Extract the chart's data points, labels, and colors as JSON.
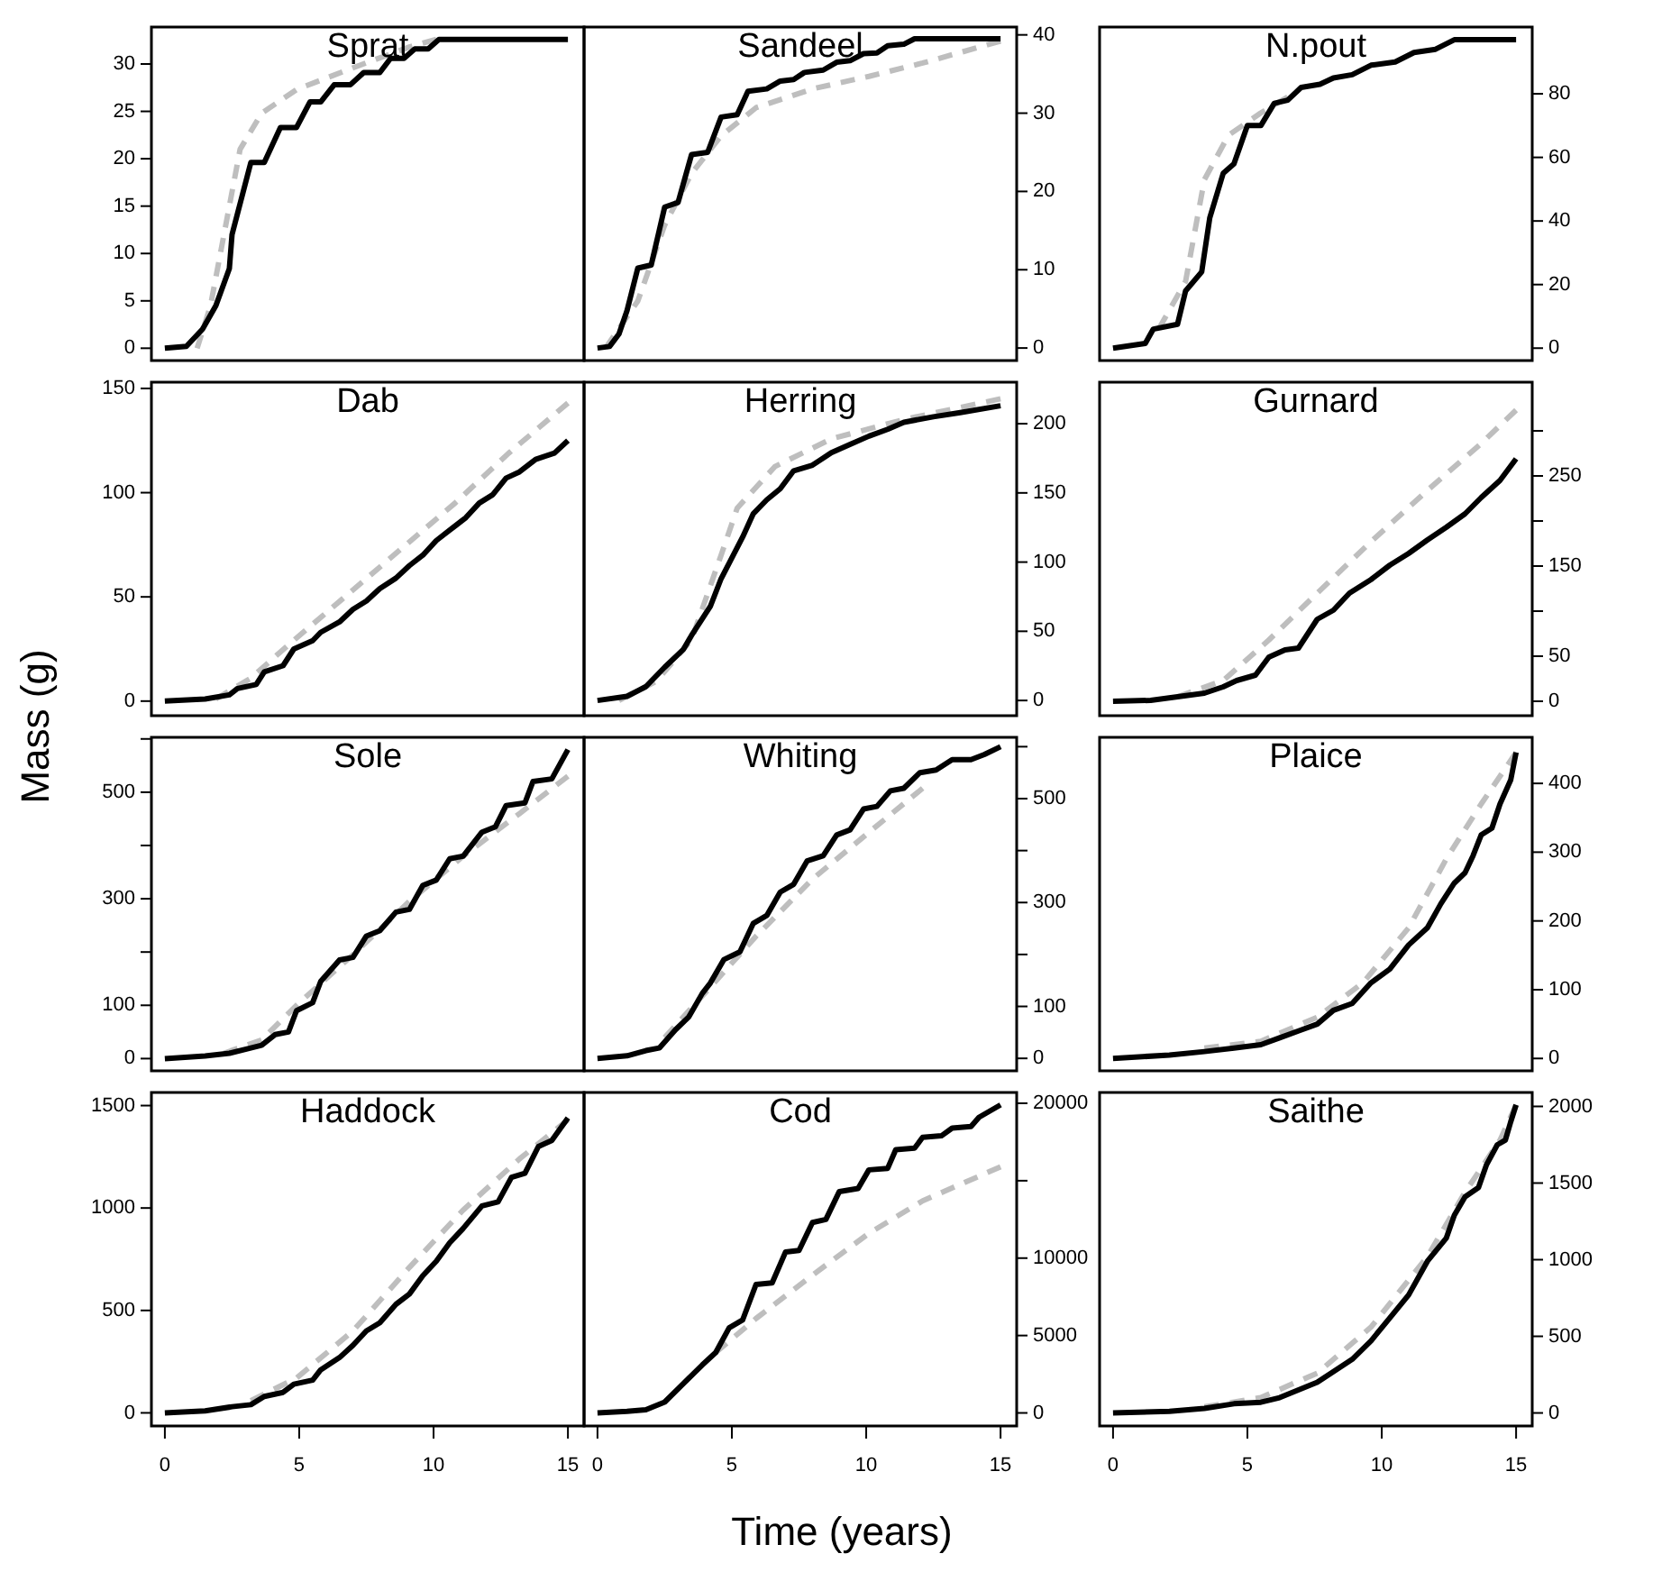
{
  "chart_data": [
    {
      "type": "line",
      "title": "Sprat",
      "xlim": [
        -0.5,
        15.6
      ],
      "xticks": [
        0,
        5,
        10,
        15
      ],
      "ylim": [
        -1.3,
        33.9
      ],
      "yticks": [
        0,
        5,
        10,
        15,
        20,
        25,
        30
      ],
      "tick_labels": "y",
      "series": [
        {
          "color": "#000000",
          "line_style": "solid",
          "x": [
            0,
            0.8,
            1.4,
            1.9,
            2.4,
            2.5,
            3.2,
            3.7,
            4.3,
            4.9,
            5.4,
            5.8,
            6.3,
            6.9,
            7.4,
            8.0,
            8.4,
            8.9,
            9.3,
            9.8,
            10.2,
            15
          ],
          "values": [
            0,
            0.2,
            2,
            4.5,
            8.4,
            12,
            19.6,
            19.6,
            23.3,
            23.3,
            26,
            26,
            27.8,
            27.8,
            29.1,
            29.1,
            30.6,
            30.6,
            31.6,
            31.6,
            32.6,
            32.6
          ]
        },
        {
          "color": "#bebebe",
          "line_style": "dashed",
          "x": [
            1.2,
            1.7,
            2.2,
            2.8,
            3.6,
            4.9,
            7.0,
            9.1,
            10.1
          ],
          "values": [
            0,
            4.5,
            12,
            21,
            24.8,
            27.3,
            29.6,
            31.8,
            32.6
          ]
        }
      ]
    },
    {
      "type": "line",
      "title": "Sandeel",
      "xlim": [
        -0.5,
        15.6
      ],
      "xticks": [
        0,
        5,
        10,
        15
      ],
      "ylim": [
        -1.6,
        41.0
      ],
      "yticks": [
        0,
        10,
        20,
        30,
        40
      ],
      "tick_labels": "y",
      "series": [
        {
          "color": "#000000",
          "line_style": "solid",
          "x": [
            0,
            0.45,
            0.8,
            1.1,
            1.5,
            2.0,
            2.5,
            3.0,
            3.5,
            4.1,
            4.6,
            5.2,
            5.6,
            6.3,
            6.8,
            7.3,
            7.7,
            8.4,
            8.9,
            9.4,
            9.9,
            10.4,
            10.8,
            11.4,
            11.8,
            15
          ],
          "values": [
            0,
            0.2,
            1.8,
            4.8,
            10.2,
            10.6,
            18,
            18.6,
            24.7,
            25,
            29.5,
            29.8,
            32.8,
            33.1,
            34.1,
            34.3,
            35.2,
            35.5,
            36.5,
            36.7,
            37.6,
            37.7,
            38.6,
            38.8,
            39.5,
            39.5
          ]
        },
        {
          "color": "#bebebe",
          "line_style": "dashed",
          "x": [
            0.3,
            1.5,
            2.5,
            3.5,
            4.6,
            5.9,
            8.0,
            10.1,
            12.1,
            15
          ],
          "values": [
            0,
            6,
            15.7,
            22.3,
            27.1,
            30.7,
            33.1,
            34.7,
            36.4,
            39.2
          ]
        }
      ]
    },
    {
      "type": "line",
      "title": "N.pout",
      "xlim": [
        -0.5,
        15.6
      ],
      "xticks": [
        0,
        5,
        10,
        15
      ],
      "ylim": [
        -3.9,
        101
      ],
      "yticks": [
        0,
        20,
        40,
        60,
        80
      ],
      "tick_labels": "y",
      "series": [
        {
          "color": "#000000",
          "line_style": "solid",
          "x": [
            0,
            1.2,
            1.5,
            2.4,
            2.7,
            3.3,
            3.6,
            4.1,
            4.5,
            5.0,
            5.5,
            6.0,
            6.5,
            7.0,
            7.7,
            8.2,
            8.9,
            9.6,
            10.5,
            11.2,
            12.0,
            12.7,
            15
          ],
          "values": [
            0,
            1.5,
            6,
            7.5,
            18,
            24,
            41,
            55,
            58,
            70,
            70,
            77,
            78,
            82,
            83,
            85,
            86,
            89,
            90,
            93,
            94,
            97,
            97
          ]
        },
        {
          "color": "#bebebe",
          "line_style": "dashed",
          "x": [
            1.7,
            2.7,
            3.4,
            4.3,
            5.5,
            6.5
          ],
          "values": [
            6,
            21,
            53,
            67,
            74,
            79
          ]
        }
      ]
    },
    {
      "type": "line",
      "title": "Dab",
      "ylabel": "Mass (g)",
      "xlim": [
        -0.5,
        15.6
      ],
      "xticks": [
        0,
        5,
        10,
        15
      ],
      "ylim": [
        -7,
        153
      ],
      "yticks": [
        0,
        50,
        100,
        150
      ],
      "tick_labels": "y",
      "series": [
        {
          "color": "#000000",
          "line_style": "solid",
          "x": [
            0,
            1.5,
            2.4,
            2.7,
            3.4,
            3.7,
            4.4,
            4.8,
            5.5,
            5.8,
            6.5,
            7.0,
            7.5,
            8.0,
            8.6,
            9.1,
            9.6,
            10.1,
            10.6,
            11.2,
            11.7,
            12.2,
            12.7,
            13.2,
            13.8,
            14.5,
            15
          ],
          "values": [
            0,
            1,
            3,
            6,
            8,
            14,
            17,
            25,
            29,
            33,
            38,
            44,
            48,
            54,
            59,
            65,
            70,
            77,
            82,
            88,
            95,
            99,
            107,
            110,
            116,
            119,
            125
          ]
        },
        {
          "color": "#bebebe",
          "line_style": "dashed",
          "x": [
            1.9,
            3.2,
            4.6,
            6.7,
            8.7,
            10.8,
            12.8,
            15
          ],
          "values": [
            1,
            11,
            27,
            50,
            72,
            95,
            119,
            143
          ]
        }
      ]
    },
    {
      "type": "line",
      "title": "Herring",
      "xlim": [
        -0.5,
        15.6
      ],
      "xticks": [
        0,
        5,
        10,
        15
      ],
      "ylim": [
        -11,
        230
      ],
      "yticks": [
        0,
        50,
        100,
        150,
        200
      ],
      "tick_labels": "y",
      "series": [
        {
          "color": "#000000",
          "line_style": "solid",
          "x": [
            0,
            1.1,
            1.8,
            2.5,
            3.2,
            3.5,
            4.2,
            4.6,
            5.4,
            5.8,
            6.3,
            6.8,
            7.3,
            8.0,
            8.7,
            9.4,
            10.1,
            10.8,
            11.4,
            12.5,
            13.5,
            15
          ],
          "values": [
            0,
            3,
            10,
            24,
            37,
            47,
            68,
            88,
            118,
            135,
            145,
            153,
            166,
            170,
            179,
            185,
            191,
            196,
            201,
            205,
            208,
            213
          ]
        },
        {
          "color": "#bebebe",
          "line_style": "dashed",
          "x": [
            0.8,
            2.2,
            3.5,
            4.6,
            5.2,
            6.6,
            8.7,
            11.4,
            15
          ],
          "values": [
            0,
            14,
            44,
            105,
            139,
            169,
            189,
            203,
            218
          ]
        }
      ]
    },
    {
      "type": "line",
      "title": "Gurnard",
      "xlim": [
        -0.5,
        15.6
      ],
      "xticks": [
        0,
        5,
        10,
        15
      ],
      "ylim": [
        -16,
        354
      ],
      "yticks": [
        0,
        50,
        {
          "value": 100,
          "label": null
        },
        150,
        {
          "value": 200,
          "label": null
        },
        250,
        {
          "value": 300,
          "label": null
        }
      ],
      "tick_labels": "y",
      "series": [
        {
          "color": "#000000",
          "line_style": "solid",
          "x": [
            0,
            1.4,
            2.4,
            3.4,
            4.1,
            4.6,
            5.3,
            5.8,
            6.4,
            6.9,
            7.6,
            8.2,
            8.8,
            9.6,
            10.3,
            11.0,
            11.7,
            12.4,
            13.1,
            13.7,
            14.4,
            15
          ],
          "values": [
            0,
            1,
            5,
            9,
            16,
            23,
            29,
            49,
            57,
            59,
            91,
            101,
            120,
            135,
            151,
            164,
            179,
            193,
            208,
            226,
            245,
            269
          ]
        },
        {
          "color": "#bebebe",
          "line_style": "dashed",
          "x": [
            2.4,
            4.1,
            5.8,
            7.6,
            9.6,
            11.7,
            13.7,
            15
          ],
          "values": [
            5,
            23,
            68,
            120,
            177,
            234,
            286,
            323
          ]
        }
      ]
    },
    {
      "type": "line",
      "title": "Sole",
      "xlim": [
        -0.5,
        15.6
      ],
      "xticks": [
        0,
        5,
        10,
        15
      ],
      "ylim": [
        -23,
        603
      ],
      "yticks": [
        0,
        100,
        {
          "value": 200,
          "label": null
        },
        300,
        {
          "value": 400,
          "label": null
        },
        500,
        {
          "value": 600,
          "label": null
        }
      ],
      "tick_labels": "y",
      "series": [
        {
          "color": "#000000",
          "line_style": "solid",
          "x": [
            0,
            1.5,
            2.4,
            3.2,
            3.6,
            4.1,
            4.6,
            4.9,
            5.5,
            5.8,
            6.5,
            7.0,
            7.5,
            8.0,
            8.6,
            9.1,
            9.6,
            10.1,
            10.6,
            11.1,
            11.8,
            12.3,
            12.7,
            13.4,
            13.7,
            14.4,
            15
          ],
          "values": [
            0,
            5,
            10,
            20,
            25,
            45,
            50,
            90,
            105,
            145,
            185,
            190,
            230,
            240,
            275,
            280,
            325,
            335,
            375,
            380,
            425,
            435,
            475,
            480,
            520,
            525,
            580
          ]
        },
        {
          "color": "#bebebe",
          "line_style": "dashed",
          "x": [
            2.2,
            3.6,
            4.9,
            7.0,
            9.1,
            11.1,
            13.2,
            15
          ],
          "values": [
            10,
            35,
            100,
            195,
            295,
            380,
            460,
            530
          ]
        }
      ]
    },
    {
      "type": "line",
      "title": "Whiting",
      "xlim": [
        -0.5,
        15.6
      ],
      "xticks": [
        0,
        5,
        10,
        15
      ],
      "ylim": [
        -24,
        618
      ],
      "yticks": [
        0,
        100,
        {
          "value": 200,
          "label": null
        },
        300,
        {
          "value": 400,
          "label": null
        },
        500,
        {
          "value": 600,
          "label": null
        }
      ],
      "tick_labels": "y",
      "series": [
        {
          "color": "#000000",
          "line_style": "solid",
          "x": [
            0,
            1.1,
            1.8,
            2.3,
            2.9,
            3.4,
            3.9,
            4.2,
            4.7,
            5.3,
            5.8,
            6.3,
            6.8,
            7.3,
            7.8,
            8.4,
            8.9,
            9.4,
            9.9,
            10.4,
            10.9,
            11.4,
            12.0,
            12.6,
            13.2,
            13.9,
            14.4,
            15
          ],
          "values": [
            0,
            5,
            15,
            20,
            55,
            80,
            125,
            145,
            190,
            205,
            260,
            275,
            320,
            335,
            380,
            390,
            430,
            440,
            480,
            485,
            515,
            520,
            550,
            555,
            575,
            575,
            585,
            600
          ]
        },
        {
          "color": "#bebebe",
          "line_style": "dashed",
          "x": [
            2.5,
            3.9,
            5.9,
            8.0,
            10.1,
            12.1
          ],
          "values": [
            40,
            120,
            235,
            345,
            435,
            520
          ]
        }
      ]
    },
    {
      "type": "line",
      "title": "Plaice",
      "xlim": [
        -0.5,
        15.6
      ],
      "xticks": [
        0,
        5,
        10,
        15
      ],
      "ylim": [
        -18,
        467
      ],
      "yticks": [
        0,
        100,
        200,
        300,
        400
      ],
      "tick_labels": "y",
      "series": [
        {
          "color": "#000000",
          "line_style": "solid",
          "x": [
            0,
            2.1,
            3.4,
            4.5,
            5.5,
            6.2,
            6.9,
            7.6,
            8.2,
            8.9,
            9.6,
            10.3,
            11.0,
            11.7,
            12.2,
            12.7,
            13.1,
            13.4,
            13.7,
            14.1,
            14.4,
            14.8,
            15
          ],
          "values": [
            0,
            5,
            10,
            15,
            20,
            30,
            40,
            50,
            70,
            80,
            110,
            130,
            165,
            190,
            225,
            255,
            270,
            295,
            325,
            335,
            370,
            405,
            445
          ]
        },
        {
          "color": "#bebebe",
          "line_style": "dashed",
          "x": [
            3.4,
            5.5,
            7.6,
            9.3,
            11.0,
            12.4,
            13.7,
            15
          ],
          "values": [
            15,
            25,
            60,
            110,
            190,
            290,
            370,
            445
          ]
        }
      ]
    },
    {
      "type": "line",
      "title": "Haddock",
      "xlim": [
        -0.5,
        15.6
      ],
      "xticks": [
        0,
        5,
        10,
        15
      ],
      "ylim": [
        -64,
        1564
      ],
      "yticks": [
        0,
        500,
        1000,
        1500
      ],
      "series": [
        {
          "color": "#000000",
          "line_style": "solid",
          "x": [
            0,
            1.5,
            2.5,
            3.2,
            3.7,
            4.4,
            4.8,
            5.5,
            5.8,
            6.5,
            7.0,
            7.5,
            8.0,
            8.6,
            9.1,
            9.6,
            10.1,
            10.6,
            11.1,
            11.8,
            12.4,
            12.9,
            13.4,
            13.9,
            14.4,
            15
          ],
          "values": [
            0,
            10,
            30,
            40,
            80,
            100,
            140,
            160,
            210,
            270,
            330,
            400,
            440,
            530,
            580,
            670,
            740,
            830,
            900,
            1010,
            1030,
            1150,
            1170,
            1300,
            1330,
            1440
          ]
        },
        {
          "color": "#bebebe",
          "line_style": "dashed",
          "x": [
            3.2,
            4.9,
            7.0,
            9.1,
            11.1,
            13.2,
            15
          ],
          "values": [
            60,
            170,
            400,
            710,
            990,
            1240,
            1430
          ]
        }
      ]
    },
    {
      "type": "line",
      "title": "Cod",
      "xlabel": "Time (years)",
      "xlim": [
        -0.5,
        15.6
      ],
      "xticks": [
        0,
        5,
        10,
        15
      ],
      "ylim": [
        -843,
        20700
      ],
      "yticks": [
        0,
        5000,
        10000,
        {
          "value": 15000,
          "label": null
        },
        20000
      ],
      "series": [
        {
          "color": "#000000",
          "line_style": "solid",
          "x": [
            0,
            1.1,
            1.8,
            2.5,
            3.2,
            3.9,
            4.4,
            4.9,
            5.4,
            5.9,
            6.5,
            7.0,
            7.5,
            8.0,
            8.5,
            9.0,
            9.7,
            10.1,
            10.8,
            11.1,
            11.8,
            12.1,
            12.8,
            13.2,
            13.9,
            14.2,
            15
          ],
          "values": [
            0,
            100,
            200,
            700,
            1900,
            3100,
            3900,
            5500,
            6000,
            8300,
            8400,
            10400,
            10500,
            12300,
            12500,
            14300,
            14500,
            15700,
            15800,
            17000,
            17100,
            17800,
            17900,
            18400,
            18500,
            19100,
            19900
          ]
        },
        {
          "color": "#bebebe",
          "line_style": "dashed",
          "x": [
            4.4,
            5.9,
            8.0,
            10.1,
            12.1,
            15
          ],
          "values": [
            3900,
            6100,
            8900,
            11600,
            13700,
            15900
          ]
        }
      ]
    },
    {
      "type": "line",
      "title": "Saithe",
      "xlim": [
        -0.5,
        15.6
      ],
      "xticks": [
        0,
        5,
        10,
        15
      ],
      "ylim": [
        -85,
        2091
      ],
      "yticks": [
        0,
        500,
        1000,
        1500,
        2000
      ],
      "series": [
        {
          "color": "#000000",
          "line_style": "solid",
          "x": [
            0,
            2.1,
            3.4,
            4.5,
            5.5,
            6.2,
            6.9,
            7.6,
            8.2,
            8.9,
            9.6,
            10.3,
            11.0,
            11.7,
            12.4,
            12.7,
            13.1,
            13.6,
            13.9,
            14.3,
            14.6,
            14.8,
            15
          ],
          "values": [
            0,
            10,
            30,
            60,
            70,
            100,
            150,
            200,
            270,
            350,
            470,
            620,
            770,
            990,
            1140,
            1290,
            1410,
            1470,
            1620,
            1750,
            1780,
            1900,
            2010
          ]
        },
        {
          "color": "#bebebe",
          "line_style": "dashed",
          "x": [
            3.4,
            5.5,
            7.6,
            9.6,
            11.7,
            13.1,
            14.4,
            15
          ],
          "values": [
            40,
            100,
            260,
            560,
            1020,
            1440,
            1780,
            2010
          ]
        }
      ]
    }
  ]
}
